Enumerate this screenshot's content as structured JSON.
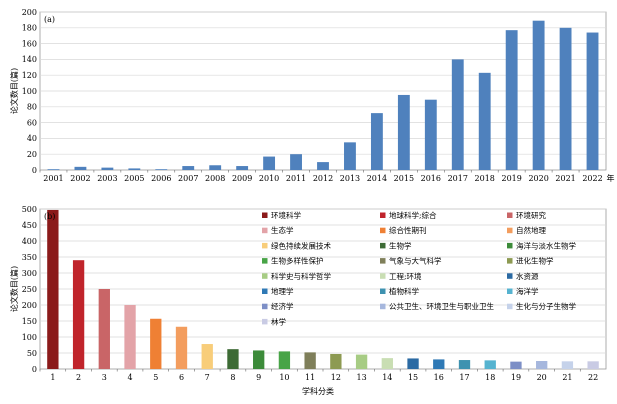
{
  "chart_data": [
    {
      "type": "bar",
      "panel_label": "(a)",
      "ylabel": "论文数目(篇)",
      "x_suffix": "年",
      "ylim": [
        0,
        200
      ],
      "yticks": [
        0,
        20,
        40,
        60,
        80,
        100,
        120,
        140,
        160,
        180,
        200
      ],
      "grid": true,
      "color": "#4f81bd",
      "categories": [
        "2001",
        "2002",
        "2003",
        "2005",
        "2006",
        "2007",
        "2008",
        "2009",
        "2010",
        "2011",
        "2012",
        "2013",
        "2014",
        "2015",
        "2016",
        "2017",
        "2018",
        "2019",
        "2020",
        "2021",
        "2022"
      ],
      "values": [
        1,
        4,
        3,
        2,
        1,
        5,
        6,
        5,
        17,
        20,
        10,
        35,
        72,
        95,
        89,
        140,
        123,
        177,
        189,
        180,
        174
      ]
    },
    {
      "type": "bar",
      "panel_label": "(b)",
      "ylabel": "论文数目(篇)",
      "xlabel": "学科分类",
      "ylim": [
        0,
        500
      ],
      "yticks": [
        0,
        50,
        100,
        150,
        200,
        250,
        300,
        350,
        400,
        450,
        500
      ],
      "grid": true,
      "legend_placement": "top-right",
      "categories": [
        "1",
        "2",
        "3",
        "4",
        "5",
        "6",
        "7",
        "8",
        "9",
        "10",
        "11",
        "12",
        "13",
        "14",
        "15",
        "16",
        "17",
        "18",
        "19",
        "20",
        "21",
        "22"
      ],
      "values": [
        497,
        340,
        250,
        200,
        157,
        132,
        78,
        62,
        58,
        55,
        52,
        47,
        45,
        34,
        33,
        30,
        28,
        27,
        23,
        25,
        24,
        24
      ],
      "colors": [
        "#8b1a1a",
        "#c0242b",
        "#c96567",
        "#e3a3a8",
        "#ef8034",
        "#f39d5e",
        "#f8cd7a",
        "#3d6b35",
        "#3c8b3a",
        "#48a447",
        "#7f7f5a",
        "#8d9a52",
        "#a7cc84",
        "#c9deb3",
        "#2b6aa3",
        "#2f79b5",
        "#3e92b0",
        "#56b3d0",
        "#7d8fc6",
        "#a6b7dd",
        "#c5d2ea",
        "#c9cbe4"
      ],
      "legend": [
        "环境科学",
        "地球科学;综合",
        "环境研究",
        "生态学",
        "综合性期刊",
        "自然地理",
        "绿色持续发展技术",
        "生物学",
        "海洋与淡水生物学",
        "生物多样性保护",
        "气象与大气科学",
        "进化生物学",
        "科学史与科学哲学",
        "工程;环境",
        "水资源",
        "地理学",
        "植物科学",
        "海洋学",
        "经济学",
        "公共卫生、环境卫生与职业卫生",
        "生化与分子生物学",
        "林学"
      ]
    }
  ]
}
